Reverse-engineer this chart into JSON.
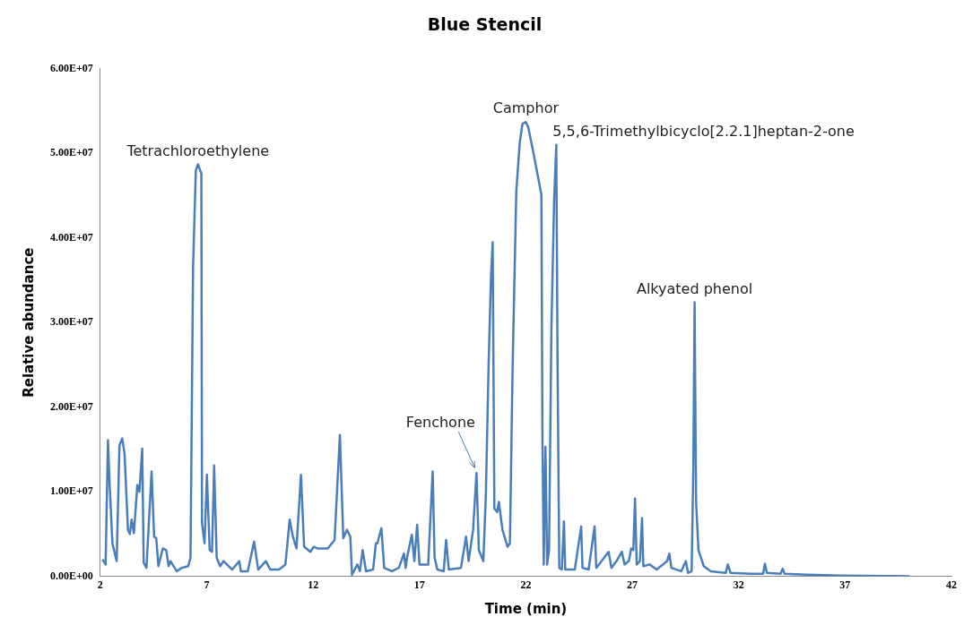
{
  "chart_data": {
    "type": "line",
    "title": "Blue Stencil",
    "xlabel": "Time (min)",
    "ylabel": "Relative abundance",
    "xlim": [
      2,
      42
    ],
    "xticks": [
      2,
      7,
      12,
      17,
      22,
      27,
      32,
      37,
      42
    ],
    "ylim": [
      0,
      60000000.0
    ],
    "yticks": [
      {
        "value": 0,
        "label": "0.00E+00"
      },
      {
        "value": 10000000.0,
        "label": "1.00E+07"
      },
      {
        "value": 20000000.0,
        "label": "2.00E+07"
      },
      {
        "value": 30000000.0,
        "label": "3.00E+07"
      },
      {
        "value": 40000000.0,
        "label": "4.00E+07"
      },
      {
        "value": 50000000.0,
        "label": "5.00E+07"
      },
      {
        "value": 60000000.0,
        "label": "6.00E+07"
      }
    ],
    "grid": false,
    "legend": false,
    "marker": "none",
    "line_style": "solid",
    "series": [
      {
        "color": "#4a7ebb",
        "x": [
          2.1,
          2.25,
          2.36,
          2.44,
          2.57,
          2.77,
          2.9,
          3.03,
          3.14,
          3.3,
          3.39,
          3.47,
          3.58,
          3.74,
          3.84,
          3.97,
          4.04,
          4.17,
          4.41,
          4.53,
          4.63,
          4.73,
          4.94,
          5.1,
          5.21,
          5.3,
          5.59,
          5.83,
          6.13,
          6.24,
          6.36,
          6.49,
          6.59,
          6.75,
          6.78,
          6.9,
          7.01,
          7.14,
          7.25,
          7.35,
          7.47,
          7.63,
          7.79,
          8.2,
          8.53,
          8.61,
          8.93,
          9.23,
          9.42,
          9.78,
          9.99,
          10.4,
          10.7,
          10.9,
          11.05,
          11.22,
          11.43,
          11.58,
          11.87,
          12.03,
          12.2,
          12.69,
          13.01,
          13.26,
          13.42,
          13.59,
          13.75,
          13.83,
          14.08,
          14.2,
          14.33,
          14.49,
          14.82,
          14.95,
          15.02,
          15.21,
          15.34,
          15.7,
          16.03,
          16.27,
          16.35,
          16.43,
          16.64,
          16.76,
          16.89,
          17.0,
          17.41,
          17.62,
          17.71,
          17.84,
          18.14,
          18.25,
          18.38,
          18.95,
          19.19,
          19.31,
          19.52,
          19.68,
          19.79,
          20.0,
          20.12,
          20.25,
          20.36,
          20.44,
          20.52,
          20.65,
          20.73,
          20.9,
          21.14,
          21.25,
          21.38,
          21.55,
          21.71,
          21.84,
          22.0,
          22.11,
          22.36,
          22.73,
          22.78,
          22.84,
          22.92,
          23.0,
          23.09,
          23.2,
          23.33,
          23.43,
          23.49,
          23.57,
          23.69,
          23.79,
          23.85,
          24.3,
          24.6,
          24.66,
          24.95,
          25.23,
          25.31,
          25.89,
          26.02,
          26.26,
          26.51,
          26.64,
          26.84,
          26.95,
          27.05,
          27.13,
          27.21,
          27.36,
          27.46,
          27.52,
          27.82,
          28.15,
          28.44,
          28.64,
          28.74,
          28.84,
          29.3,
          29.52,
          29.62,
          29.79,
          29.87,
          29.93,
          30.0,
          30.11,
          30.36,
          30.69,
          31.39,
          31.49,
          31.62,
          32.57,
          33.15,
          33.23,
          33.33,
          33.97,
          34.07,
          34.16,
          35.2,
          36.84,
          40.03
        ],
        "values": [
          2000000.0,
          1400000.0,
          16100000.0,
          10800000.0,
          3900000.0,
          1800000.0,
          15500000.0,
          16300000.0,
          14500000.0,
          5500000.0,
          5000000.0,
          6700000.0,
          5100000.0,
          10800000.0,
          10000000.0,
          15100000.0,
          1600000.0,
          1000000.0,
          12400000.0,
          4700000.0,
          4500000.0,
          1200000.0,
          3300000.0,
          3100000.0,
          1200000.0,
          1800000.0,
          600000.0,
          1000000.0,
          1200000.0,
          2200000.0,
          36500000.0,
          48000000.0,
          48700000.0,
          47600000.0,
          6300000.0,
          3900000.0,
          12000000.0,
          3100000.0,
          2900000.0,
          13100000.0,
          2200000.0,
          1200000.0,
          1800000.0,
          800000.0,
          1800000.0,
          600000.0,
          600000.0,
          4100000.0,
          800000.0,
          1800000.0,
          800000.0,
          800000.0,
          1400000.0,
          6700000.0,
          4700000.0,
          3300000.0,
          12000000.0,
          3500000.0,
          2900000.0,
          3500000.0,
          3300000.0,
          3300000.0,
          4300000.0,
          16700000.0,
          4500000.0,
          5500000.0,
          4700000.0,
          200000.0,
          1400000.0,
          600000.0,
          3100000.0,
          600000.0,
          800000.0,
          3900000.0,
          3900000.0,
          5700000.0,
          1000000.0,
          600000.0,
          1000000.0,
          2700000.0,
          1000000.0,
          2400000.0,
          4900000.0,
          1800000.0,
          6100000.0,
          1400000.0,
          1400000.0,
          12400000.0,
          2200000.0,
          800000.0,
          600000.0,
          4300000.0,
          800000.0,
          1000000.0,
          4700000.0,
          1800000.0,
          5500000.0,
          12200000.0,
          3100000.0,
          1800000.0,
          9600000.0,
          25100000.0,
          35300000.0,
          39500000.0,
          8000000.0,
          7600000.0,
          8800000.0,
          5500000.0,
          3500000.0,
          3900000.0,
          25100000.0,
          45500000.0,
          51200000.0,
          53500000.0,
          53700000.0,
          53100000.0,
          50000000.0,
          45100000.0,
          16100000.0,
          1400000.0,
          15300000.0,
          1400000.0,
          3100000.0,
          29200000.0,
          44700000.0,
          51000000.0,
          25100000.0,
          1000000.0,
          800000.0,
          6500000.0,
          800000.0,
          800000.0,
          5900000.0,
          1000000.0,
          800000.0,
          5900000.0,
          1000000.0,
          2900000.0,
          1000000.0,
          1800000.0,
          2900000.0,
          1400000.0,
          1800000.0,
          3300000.0,
          3100000.0,
          9200000.0,
          1400000.0,
          1800000.0,
          6900000.0,
          1200000.0,
          1400000.0,
          800000.0,
          1400000.0,
          1800000.0,
          2700000.0,
          1000000.0,
          600000.0,
          1800000.0,
          400000.0,
          600000.0,
          12900000.0,
          32400000.0,
          8800000.0,
          3100000.0,
          1200000.0,
          600000.0,
          400000.0,
          1400000.0,
          400000.0,
          300000.0,
          300000.0,
          1500000.0,
          400000.0,
          300000.0,
          900000.0,
          300000.0,
          200000.0,
          100000.0,
          0
        ]
      }
    ],
    "annotations": [
      {
        "text": "Tetrachloroethylene",
        "x": 6.59,
        "y": 48700000.0
      },
      {
        "text": "Camphor",
        "x": 22.0,
        "y": 53700000.0
      },
      {
        "text": "5,5,6-Trimethylbicyclo[2.2.1]heptan-2-one",
        "x": 23.43,
        "y": 51000000.0
      },
      {
        "text": "Fenchone",
        "x": 19.68,
        "y": 12200000.0
      },
      {
        "text": "Alkyated phenol",
        "x": 29.93,
        "y": 32400000.0
      }
    ]
  }
}
